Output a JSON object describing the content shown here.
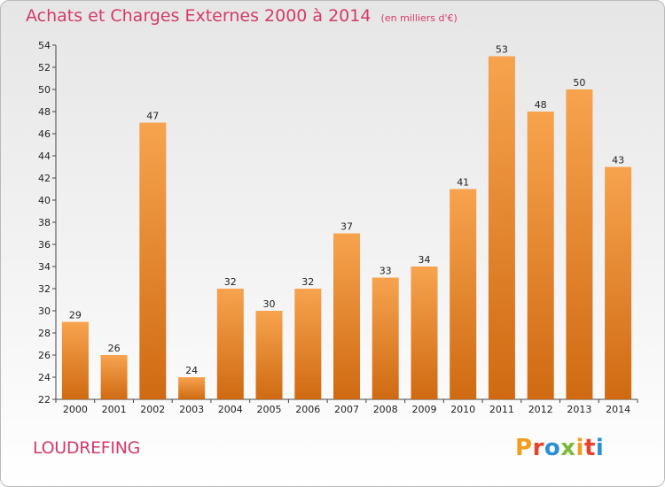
{
  "header": {
    "title": "Achats et Charges Externes 2000 à 2014",
    "unit_note": "(en milliers d'€)"
  },
  "footer": {
    "place": "LOUDREFING",
    "logo_text": "Proxiti",
    "logo_colors": [
      "#f39c1d",
      "#e8412c",
      "#2a8fd6",
      "#7cb93a",
      "#f39c1d",
      "#e8412c",
      "#2a8fd6"
    ]
  },
  "colors": {
    "accent": "#d43a68",
    "bar_light": "#f7a34e",
    "bar_dark": "#cf6a12"
  },
  "chart_data": {
    "type": "bar",
    "categories": [
      "2000",
      "2001",
      "2002",
      "2003",
      "2004",
      "2005",
      "2006",
      "2007",
      "2008",
      "2009",
      "2010",
      "2011",
      "2012",
      "2013",
      "2014"
    ],
    "values": [
      29,
      26,
      47,
      24,
      32,
      30,
      32,
      37,
      33,
      34,
      41,
      53,
      48,
      50,
      43
    ],
    "title": "Achats et Charges Externes 2000 à 2014",
    "ylim": [
      22,
      54
    ],
    "yticks": [
      22,
      24,
      26,
      28,
      30,
      32,
      34,
      36,
      38,
      40,
      42,
      44,
      46,
      48,
      50,
      52,
      54
    ],
    "grid": false,
    "data_labels": true
  }
}
